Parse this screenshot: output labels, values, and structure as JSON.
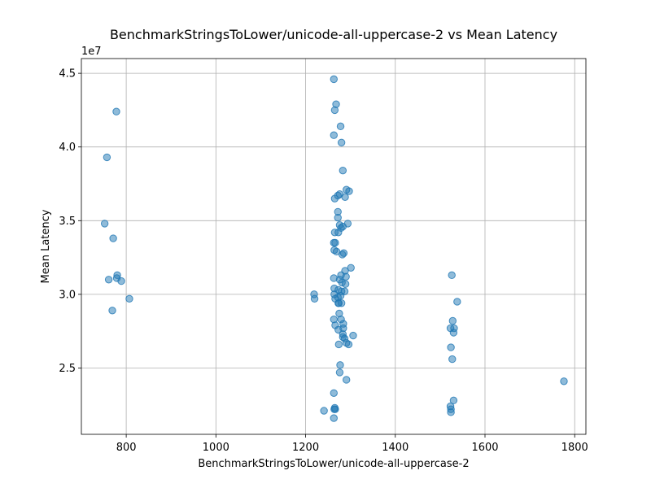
{
  "chart_data": {
    "type": "scatter",
    "title": "BenchmarkStringsToLower/unicode-all-uppercase-2 vs Mean Latency",
    "xlabel": "BenchmarkStringsToLower/unicode-all-uppercase-2",
    "ylabel": "Mean Latency",
    "y_offset_label": "1e7",
    "xlim": [
      700,
      1825
    ],
    "ylim": [
      2.05,
      4.6
    ],
    "grid": true,
    "x_ticks": [
      800,
      1000,
      1200,
      1400,
      1600,
      1800
    ],
    "x_tick_labels": [
      "800",
      "1000",
      "1200",
      "1400",
      "1600",
      "1800"
    ],
    "y_ticks": [
      2.5,
      3.0,
      3.5,
      4.0,
      4.5
    ],
    "y_tick_labels": [
      "2.5",
      "3.0",
      "3.5",
      "4.0",
      "4.5"
    ],
    "y_unit_note": "y values in units of 1e7",
    "points": [
      {
        "x": 778,
        "y": 4.24
      },
      {
        "x": 757,
        "y": 3.93
      },
      {
        "x": 752,
        "y": 3.48
      },
      {
        "x": 771,
        "y": 3.38
      },
      {
        "x": 780,
        "y": 3.13
      },
      {
        "x": 779,
        "y": 3.11
      },
      {
        "x": 761,
        "y": 3.1
      },
      {
        "x": 789,
        "y": 3.09
      },
      {
        "x": 807,
        "y": 2.97
      },
      {
        "x": 769,
        "y": 2.89
      },
      {
        "x": 1263,
        "y": 4.46
      },
      {
        "x": 1268,
        "y": 4.29
      },
      {
        "x": 1265,
        "y": 4.25
      },
      {
        "x": 1278,
        "y": 4.14
      },
      {
        "x": 1263,
        "y": 4.08
      },
      {
        "x": 1280,
        "y": 4.03
      },
      {
        "x": 1283,
        "y": 3.84
      },
      {
        "x": 1291,
        "y": 3.71
      },
      {
        "x": 1297,
        "y": 3.7
      },
      {
        "x": 1276,
        "y": 3.68
      },
      {
        "x": 1272,
        "y": 3.67
      },
      {
        "x": 1288,
        "y": 3.66
      },
      {
        "x": 1265,
        "y": 3.65
      },
      {
        "x": 1272,
        "y": 3.56
      },
      {
        "x": 1272,
        "y": 3.52
      },
      {
        "x": 1276,
        "y": 3.47
      },
      {
        "x": 1294,
        "y": 3.48
      },
      {
        "x": 1283,
        "y": 3.46
      },
      {
        "x": 1279,
        "y": 3.45
      },
      {
        "x": 1273,
        "y": 3.42
      },
      {
        "x": 1265,
        "y": 3.42
      },
      {
        "x": 1263,
        "y": 3.35
      },
      {
        "x": 1266,
        "y": 3.35
      },
      {
        "x": 1264,
        "y": 3.3
      },
      {
        "x": 1269,
        "y": 3.29
      },
      {
        "x": 1282,
        "y": 3.27
      },
      {
        "x": 1285,
        "y": 3.28
      },
      {
        "x": 1301,
        "y": 3.18
      },
      {
        "x": 1288,
        "y": 3.16
      },
      {
        "x": 1279,
        "y": 3.13
      },
      {
        "x": 1290,
        "y": 3.12
      },
      {
        "x": 1263,
        "y": 3.11
      },
      {
        "x": 1276,
        "y": 3.1
      },
      {
        "x": 1281,
        "y": 3.08
      },
      {
        "x": 1289,
        "y": 3.07
      },
      {
        "x": 1264,
        "y": 3.04
      },
      {
        "x": 1273,
        "y": 3.03
      },
      {
        "x": 1280,
        "y": 3.02
      },
      {
        "x": 1287,
        "y": 3.02
      },
      {
        "x": 1264,
        "y": 3.0
      },
      {
        "x": 1272,
        "y": 2.98
      },
      {
        "x": 1278,
        "y": 2.99
      },
      {
        "x": 1266,
        "y": 2.97
      },
      {
        "x": 1273,
        "y": 2.94
      },
      {
        "x": 1280,
        "y": 2.94
      },
      {
        "x": 1274,
        "y": 2.94
      },
      {
        "x": 1275,
        "y": 2.87
      },
      {
        "x": 1263,
        "y": 2.83
      },
      {
        "x": 1279,
        "y": 2.83
      },
      {
        "x": 1284,
        "y": 2.8
      },
      {
        "x": 1266,
        "y": 2.79
      },
      {
        "x": 1284,
        "y": 2.77
      },
      {
        "x": 1273,
        "y": 2.76
      },
      {
        "x": 1283,
        "y": 2.73
      },
      {
        "x": 1306,
        "y": 2.72
      },
      {
        "x": 1283,
        "y": 2.71
      },
      {
        "x": 1287,
        "y": 2.7
      },
      {
        "x": 1291,
        "y": 2.67
      },
      {
        "x": 1296,
        "y": 2.66
      },
      {
        "x": 1274,
        "y": 2.66
      },
      {
        "x": 1277,
        "y": 2.52
      },
      {
        "x": 1276,
        "y": 2.47
      },
      {
        "x": 1291,
        "y": 2.42
      },
      {
        "x": 1263,
        "y": 2.33
      },
      {
        "x": 1264,
        "y": 2.22
      },
      {
        "x": 1265,
        "y": 2.23
      },
      {
        "x": 1241,
        "y": 2.21
      },
      {
        "x": 1266,
        "y": 2.22
      },
      {
        "x": 1263,
        "y": 2.16
      },
      {
        "x": 1219,
        "y": 3.0
      },
      {
        "x": 1220,
        "y": 2.97
      },
      {
        "x": 1526,
        "y": 3.13
      },
      {
        "x": 1538,
        "y": 2.95
      },
      {
        "x": 1528,
        "y": 2.82
      },
      {
        "x": 1523,
        "y": 2.77
      },
      {
        "x": 1531,
        "y": 2.77
      },
      {
        "x": 1530,
        "y": 2.74
      },
      {
        "x": 1524,
        "y": 2.64
      },
      {
        "x": 1527,
        "y": 2.56
      },
      {
        "x": 1530,
        "y": 2.28
      },
      {
        "x": 1523,
        "y": 2.24
      },
      {
        "x": 1524,
        "y": 2.22
      },
      {
        "x": 1524,
        "y": 2.2
      },
      {
        "x": 1776,
        "y": 2.41
      }
    ]
  }
}
